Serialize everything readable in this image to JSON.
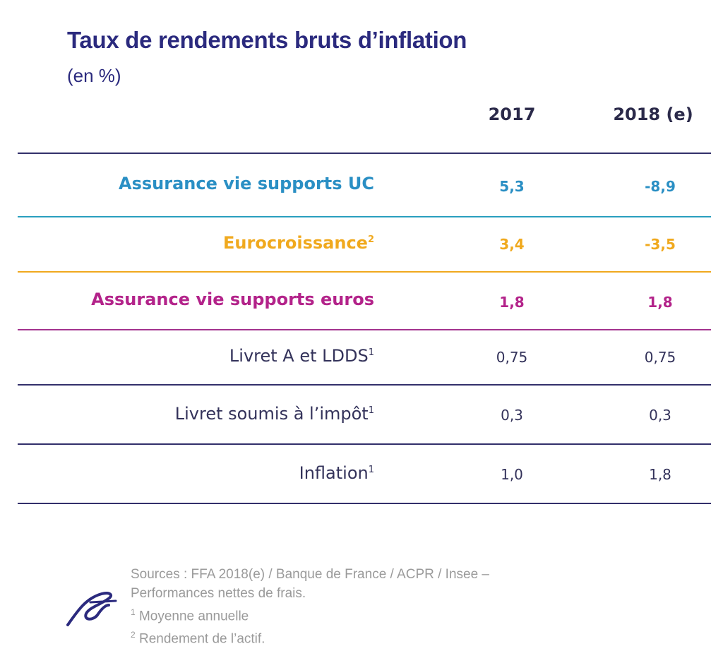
{
  "title": "Taux de rendements bruts d’inflation",
  "subtitle": "(en %)",
  "columns": [
    "2017",
    "2018 (e)"
  ],
  "colors": {
    "title": "#2b2a7e",
    "uc": "#2a8fc4",
    "eurocroissance": "#f0a91e",
    "euros": "#b3238a",
    "plain": "#33325a"
  },
  "rows": [
    {
      "label": "Assurance vie supports UC",
      "sup": "",
      "v2017": "5,3",
      "v2018": "-8,9"
    },
    {
      "label": "Eurocroissance",
      "sup": "2",
      "v2017": "3,4",
      "v2018": "-3,5"
    },
    {
      "label": "Assurance vie supports euros",
      "sup": "",
      "v2017": "1,8",
      "v2018": "1,8"
    },
    {
      "label": "Livret A et LDDS",
      "sup": "1",
      "v2017": "0,75",
      "v2018": "0,75"
    },
    {
      "label": "Livret soumis à l’impôt",
      "sup": "1",
      "v2017": "0,3",
      "v2018": "0,3"
    },
    {
      "label": "Inflation",
      "sup": "1",
      "v2017": "1,0",
      "v2018": "1,8"
    }
  ],
  "footer": {
    "line1": "Sources : FFA 2018(e) / Banque de France / ACPR / Insee –",
    "line2": "Performances nettes de frais.",
    "note1_num": "1",
    "note1": " Moyenne annuelle",
    "note2_num": "2",
    "note2": " Rendement de l’actif."
  },
  "logo": "signature-logo"
}
